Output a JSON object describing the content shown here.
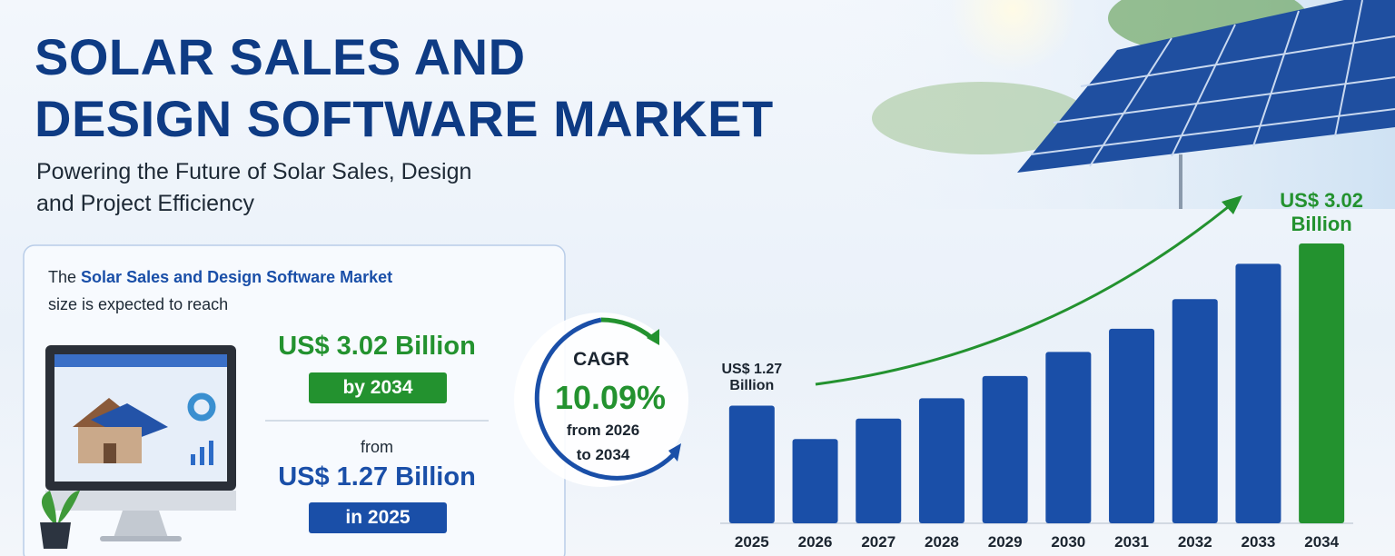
{
  "header": {
    "title_lines": [
      "SOLAR SALES AND",
      "DESIGN SOFTWARE MARKET"
    ],
    "subtitle_lines": [
      "Powering the Future of Solar Sales, Design",
      "and Project Efficiency"
    ]
  },
  "card": {
    "intro_prefix": "The",
    "intro_highlight": "Solar Sales and Design Software Market",
    "intro_suffix": "size is expected to reach",
    "forecast_value": "US$ 3.02 Billion",
    "forecast_badge": "by 2034",
    "from": "from",
    "base_value": "US$ 1.27 Billion",
    "base_badge": "in 2025"
  },
  "cagr": {
    "label": "CAGR",
    "value": "10.09%",
    "period_lines": [
      "from 2026",
      "to 2034"
    ]
  },
  "chart_data": {
    "type": "bar",
    "categories": [
      "2025",
      "2026",
      "2027",
      "2028",
      "2029",
      "2030",
      "2031",
      "2032",
      "2033",
      "2034"
    ],
    "values": [
      1.27,
      0.91,
      1.13,
      1.35,
      1.59,
      1.85,
      2.1,
      2.42,
      2.8,
      3.02
    ],
    "value_labels": [
      "US$ 1.27 Billion",
      null,
      null,
      null,
      null,
      null,
      null,
      null,
      null,
      "US$ 3.02 Billion"
    ],
    "colors": [
      "#1a4fa8",
      "#1a4fa8",
      "#1a4fa8",
      "#1a4fa8",
      "#1a4fa8",
      "#1a4fa8",
      "#1a4fa8",
      "#1a4fa8",
      "#1a4fa8",
      "#23922f"
    ],
    "label_colors": [
      "#1b2530",
      null,
      null,
      null,
      null,
      null,
      null,
      null,
      null,
      "#23922f"
    ]
  }
}
